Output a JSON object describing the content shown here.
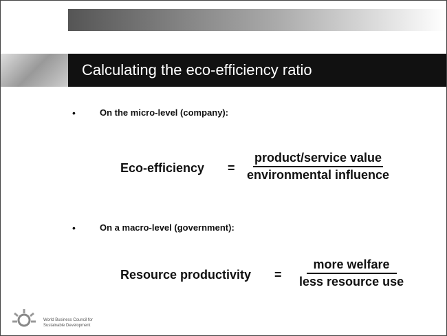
{
  "title": "Calculating the eco-efficiency ratio",
  "bullets": [
    {
      "text": "On the micro-level (company):",
      "formula": {
        "lhs": "Eco-efficiency",
        "eq": "=",
        "numerator": "product/service value",
        "denominator": "environmental influence"
      }
    },
    {
      "text": "On a macro-level (government):",
      "formula": {
        "lhs": "Resource productivity",
        "eq": "=",
        "numerator": "more welfare",
        "denominator": "less resource use"
      }
    }
  ],
  "footer": {
    "line1": "World Business Council for",
    "line2": "Sustainable Development"
  }
}
